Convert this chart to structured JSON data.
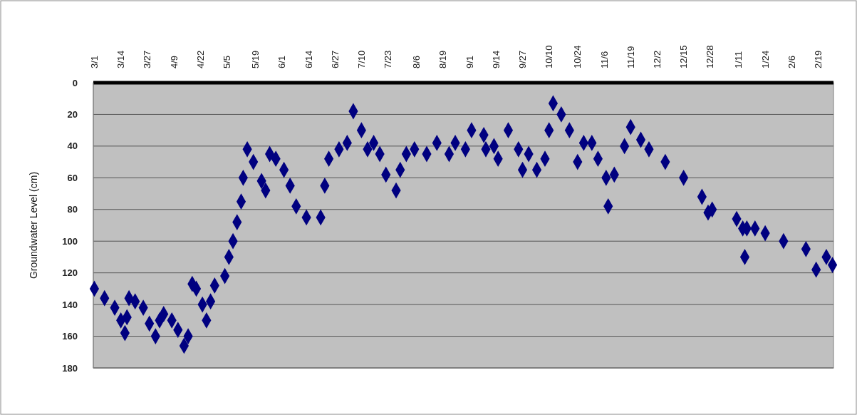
{
  "chart_data": {
    "type": "scatter",
    "ylabel": "Groundwater Level (cm)",
    "marker": "diamond",
    "grid": "y",
    "color": "#000080",
    "ylim": [
      180,
      0
    ],
    "yticks": [
      0,
      20,
      40,
      60,
      80,
      100,
      120,
      140,
      160,
      180
    ],
    "categories": [
      "3/1",
      null,
      null,
      null,
      null,
      null,
      null,
      null,
      null,
      null,
      null,
      null,
      null,
      "3/14",
      null,
      null,
      null,
      null,
      null,
      null,
      null,
      null,
      null,
      null,
      null,
      null,
      "3/27",
      null,
      null,
      null,
      null,
      null,
      null,
      null,
      null,
      null,
      null,
      null,
      null,
      "4/9",
      null,
      null,
      null,
      null,
      null,
      null,
      null,
      null,
      null,
      null,
      null,
      null,
      "4/22",
      null,
      null,
      null,
      null,
      null,
      null,
      null,
      null,
      null,
      null,
      null,
      null,
      "5/5",
      null,
      null,
      null,
      null,
      null,
      null,
      null,
      null,
      null,
      null,
      null,
      null,
      null,
      "5/19",
      null,
      null,
      null,
      null,
      null,
      null,
      null,
      null,
      null,
      null,
      null,
      null,
      "6/1",
      null,
      null,
      null,
      null,
      null,
      null,
      null,
      null,
      null,
      null,
      null,
      null,
      "6/14",
      null,
      null,
      null,
      null,
      null,
      null,
      null,
      null,
      null,
      null,
      null,
      null,
      "6/27",
      null,
      null,
      null,
      null,
      null,
      null,
      null,
      null,
      null,
      null,
      null,
      null,
      "7/10",
      null,
      null,
      null,
      null,
      null,
      null,
      null,
      null,
      null,
      null,
      null,
      null,
      "7/23",
      null,
      null,
      null,
      null,
      null,
      null,
      null,
      null,
      null,
      null,
      null,
      null,
      null,
      "8/6",
      null,
      null,
      null,
      null,
      null,
      null,
      null,
      null,
      null,
      null,
      null,
      null,
      "8/19",
      null,
      null,
      null,
      null,
      null,
      null,
      null,
      null,
      null,
      null,
      null,
      null,
      "9/1",
      null,
      null,
      null,
      null,
      null,
      null,
      null,
      null,
      null,
      null,
      null,
      null,
      "9/14",
      null,
      null,
      null,
      null,
      null,
      null,
      null,
      null,
      null,
      null,
      null,
      null,
      "9/27",
      null,
      null,
      null,
      null,
      null,
      null,
      null,
      null,
      null,
      null,
      null,
      null,
      "10/10",
      null,
      null,
      null,
      null,
      null,
      null,
      null,
      null,
      null,
      null,
      null,
      null,
      null,
      "10/24",
      null,
      null,
      null,
      null,
      null,
      null,
      null,
      null,
      null,
      null,
      null,
      null,
      "11/6",
      null,
      null,
      null,
      null,
      null,
      null,
      null,
      null,
      null,
      null,
      null,
      null,
      "11/19",
      null,
      null,
      null,
      null,
      null,
      null,
      null,
      null,
      null,
      null,
      null,
      null,
      "12/2",
      null,
      null,
      null,
      null,
      null,
      null,
      null,
      null,
      null,
      null,
      null,
      null,
      "12/15",
      null,
      null,
      null,
      null,
      null,
      null,
      null,
      null,
      null,
      null,
      null,
      null,
      "12/28",
      null,
      null,
      null,
      null,
      null,
      null,
      null,
      null,
      null,
      null,
      null,
      null,
      null,
      "1/11",
      null,
      null,
      null,
      null,
      null,
      null,
      null,
      null,
      null,
      null,
      null,
      null,
      "1/24",
      null,
      null,
      null,
      null,
      null,
      null,
      null,
      null,
      null,
      null,
      null,
      null,
      "2/6",
      null,
      null,
      null,
      null,
      null,
      null,
      null,
      null,
      null,
      null,
      null,
      null,
      "2/19",
      null,
      null,
      null,
      null,
      null,
      null,
      null
    ],
    "values": [
      130,
      null,
      null,
      null,
      null,
      136,
      null,
      null,
      null,
      null,
      142,
      null,
      null,
      150,
      null,
      158,
      148,
      136,
      null,
      null,
      138,
      null,
      null,
      null,
      142,
      null,
      null,
      152,
      null,
      null,
      160,
      null,
      150,
      null,
      146,
      null,
      null,
      null,
      150,
      null,
      null,
      156,
      null,
      null,
      166,
      null,
      160,
      null,
      127,
      null,
      130,
      null,
      null,
      140,
      null,
      150,
      null,
      138,
      null,
      128,
      null,
      null,
      null,
      null,
      122,
      null,
      110,
      null,
      100,
      null,
      88,
      null,
      75,
      60,
      null,
      42,
      null,
      null,
      50,
      null,
      null,
      null,
      62,
      null,
      68,
      null,
      45,
      null,
      null,
      48,
      null,
      null,
      null,
      55,
      null,
      null,
      65,
      null,
      null,
      78,
      null,
      null,
      null,
      null,
      85,
      null,
      null,
      null,
      null,
      null,
      null,
      85,
      null,
      65,
      null,
      48,
      null,
      null,
      null,
      null,
      42,
      null,
      null,
      null,
      38,
      null,
      null,
      18,
      null,
      null,
      null,
      30,
      null,
      null,
      42,
      null,
      null,
      38,
      null,
      null,
      45,
      null,
      null,
      58,
      null,
      null,
      null,
      null,
      68,
      null,
      55,
      null,
      null,
      45,
      null,
      null,
      null,
      42,
      null,
      null,
      null,
      null,
      null,
      45,
      null,
      null,
      null,
      null,
      38,
      null,
      null,
      null,
      null,
      null,
      45,
      null,
      null,
      38,
      null,
      null,
      null,
      null,
      42,
      null,
      null,
      30,
      null,
      null,
      null,
      null,
      null,
      33,
      42,
      null,
      null,
      null,
      40,
      null,
      48,
      null,
      null,
      null,
      null,
      30,
      null,
      null,
      null,
      null,
      42,
      null,
      55,
      null,
      null,
      45,
      null,
      null,
      null,
      55,
      null,
      null,
      null,
      48,
      null,
      30,
      null,
      13,
      null,
      null,
      null,
      20,
      null,
      null,
      null,
      30,
      null,
      null,
      null,
      50,
      null,
      null,
      38,
      null,
      null,
      null,
      38,
      null,
      null,
      48,
      null,
      null,
      null,
      60,
      78,
      null,
      null,
      58,
      null,
      null,
      null,
      null,
      40,
      null,
      null,
      28,
      null,
      null,
      null,
      null,
      36,
      null,
      null,
      null,
      42,
      null,
      null,
      null,
      null,
      null,
      null,
      null,
      50,
      null,
      null,
      null,
      null,
      null,
      null,
      null,
      null,
      60,
      null,
      null,
      null,
      null,
      null,
      null,
      null,
      null,
      72,
      null,
      null,
      82,
      null,
      80,
      null,
      null,
      null,
      null,
      null,
      null,
      null,
      null,
      null,
      null,
      null,
      86,
      null,
      null,
      92,
      110,
      92,
      null,
      null,
      null,
      92,
      null,
      null,
      null,
      null,
      95,
      null,
      null,
      null,
      null,
      null,
      null,
      null,
      null,
      100,
      null,
      null,
      null,
      null,
      null,
      null,
      null,
      null,
      null,
      null,
      105,
      null,
      null,
      null,
      null,
      118,
      null,
      null,
      null,
      null,
      110,
      null,
      null,
      115
    ]
  }
}
